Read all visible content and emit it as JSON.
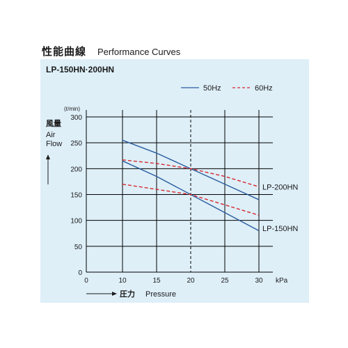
{
  "heading": {
    "title_jp": "性能曲線",
    "title_en": "Performance Curves"
  },
  "panel": {
    "model": "LP-150HN·200HN"
  },
  "colors": {
    "hz50": "#2a5d9e",
    "hz60": "#d8262d",
    "grid": "#000000",
    "panel_bg": "#deeff8"
  },
  "chart_data": {
    "type": "line",
    "x_ticks": [
      "0",
      "10",
      "15",
      "20",
      "25",
      "30"
    ],
    "y_ticks": [
      "0",
      "50",
      "100",
      "150",
      "200",
      "250",
      "300"
    ],
    "xlim": [
      10,
      30
    ],
    "ylim": [
      0,
      300
    ],
    "x_unit": "kPa",
    "y_unit": "(ℓ/min)",
    "ylabel_jp": "風量",
    "ylabel_en": [
      "Air",
      "Flow"
    ],
    "xlabel_jp": "圧力",
    "xlabel_en": "Pressure",
    "reference_x": 20,
    "legend": [
      {
        "label": "50Hz",
        "style": "solid"
      },
      {
        "label": "60Hz",
        "style": "dashed"
      }
    ],
    "series": [
      {
        "model": "LP-200HN",
        "freq": "50Hz",
        "style": "solid",
        "x": [
          10,
          15,
          20,
          25,
          30
        ],
        "values": [
          255,
          230,
          200,
          170,
          140
        ]
      },
      {
        "model": "LP-200HN",
        "freq": "60Hz",
        "style": "dashed",
        "x": [
          10,
          15,
          20,
          25,
          30
        ],
        "values": [
          217,
          210,
          200,
          185,
          165
        ]
      },
      {
        "model": "LP-150HN",
        "freq": "50Hz",
        "style": "solid",
        "x": [
          10,
          15,
          20,
          25,
          30
        ],
        "values": [
          215,
          185,
          150,
          115,
          80
        ]
      },
      {
        "model": "LP-150HN",
        "freq": "60Hz",
        "style": "dashed",
        "x": [
          10,
          15,
          20,
          25,
          30
        ],
        "values": [
          170,
          160,
          150,
          130,
          110
        ]
      }
    ],
    "curve_labels": [
      {
        "text": "LP-200HN",
        "anchor_y": 165
      },
      {
        "text": "LP-150HN",
        "anchor_y": 85
      }
    ]
  }
}
